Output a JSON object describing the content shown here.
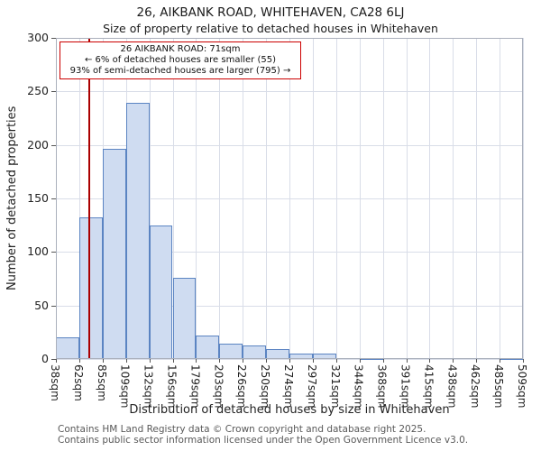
{
  "title": "26, AIKBANK ROAD, WHITEHAVEN, CA28 6LJ",
  "subtitle": "Size of property relative to detached houses in Whitehaven",
  "chart_data": {
    "type": "bar",
    "title": "26, AIKBANK ROAD, WHITEHAVEN, CA28 6LJ",
    "subtitle": "Size of property relative to detached houses in Whitehaven",
    "xlabel": "Distribution of detached houses by size in Whitehaven",
    "ylabel": "Number of detached properties",
    "ylim": [
      0,
      300
    ],
    "yticks": [
      0,
      50,
      100,
      150,
      200,
      250,
      300
    ],
    "bin_edges_sqm": [
      38,
      62,
      85,
      109,
      132,
      156,
      179,
      203,
      226,
      250,
      274,
      297,
      321,
      344,
      368,
      391,
      415,
      438,
      462,
      485,
      509
    ],
    "tick_labels": [
      "38sqm",
      "62sqm",
      "85sqm",
      "109sqm",
      "132sqm",
      "156sqm",
      "179sqm",
      "203sqm",
      "226sqm",
      "250sqm",
      "274sqm",
      "297sqm",
      "321sqm",
      "344sqm",
      "368sqm",
      "391sqm",
      "415sqm",
      "438sqm",
      "462sqm",
      "485sqm",
      "509sqm"
    ],
    "values": [
      20,
      132,
      196,
      239,
      125,
      76,
      22,
      14,
      13,
      9,
      5,
      5,
      0,
      1,
      0,
      0,
      0,
      0,
      0,
      1
    ],
    "grid": true,
    "legend": "none",
    "marker": {
      "value_sqm": 71,
      "color": "#aa0000"
    },
    "annotation": {
      "line1": "26 AIKBANK ROAD: 71sqm",
      "line2": "← 6% of detached houses are smaller (55)",
      "line3": "93% of semi-detached houses are larger (795) →"
    },
    "colors": {
      "bar_fill": "#cfdcf1",
      "bar_border": "#5b84c2",
      "grid": "#d9dde8",
      "marker_line": "#aa0000"
    }
  },
  "footer": {
    "line1": "Contains HM Land Registry data © Crown copyright and database right 2025.",
    "line2": "Contains public sector information licensed under the Open Government Licence v3.0."
  }
}
